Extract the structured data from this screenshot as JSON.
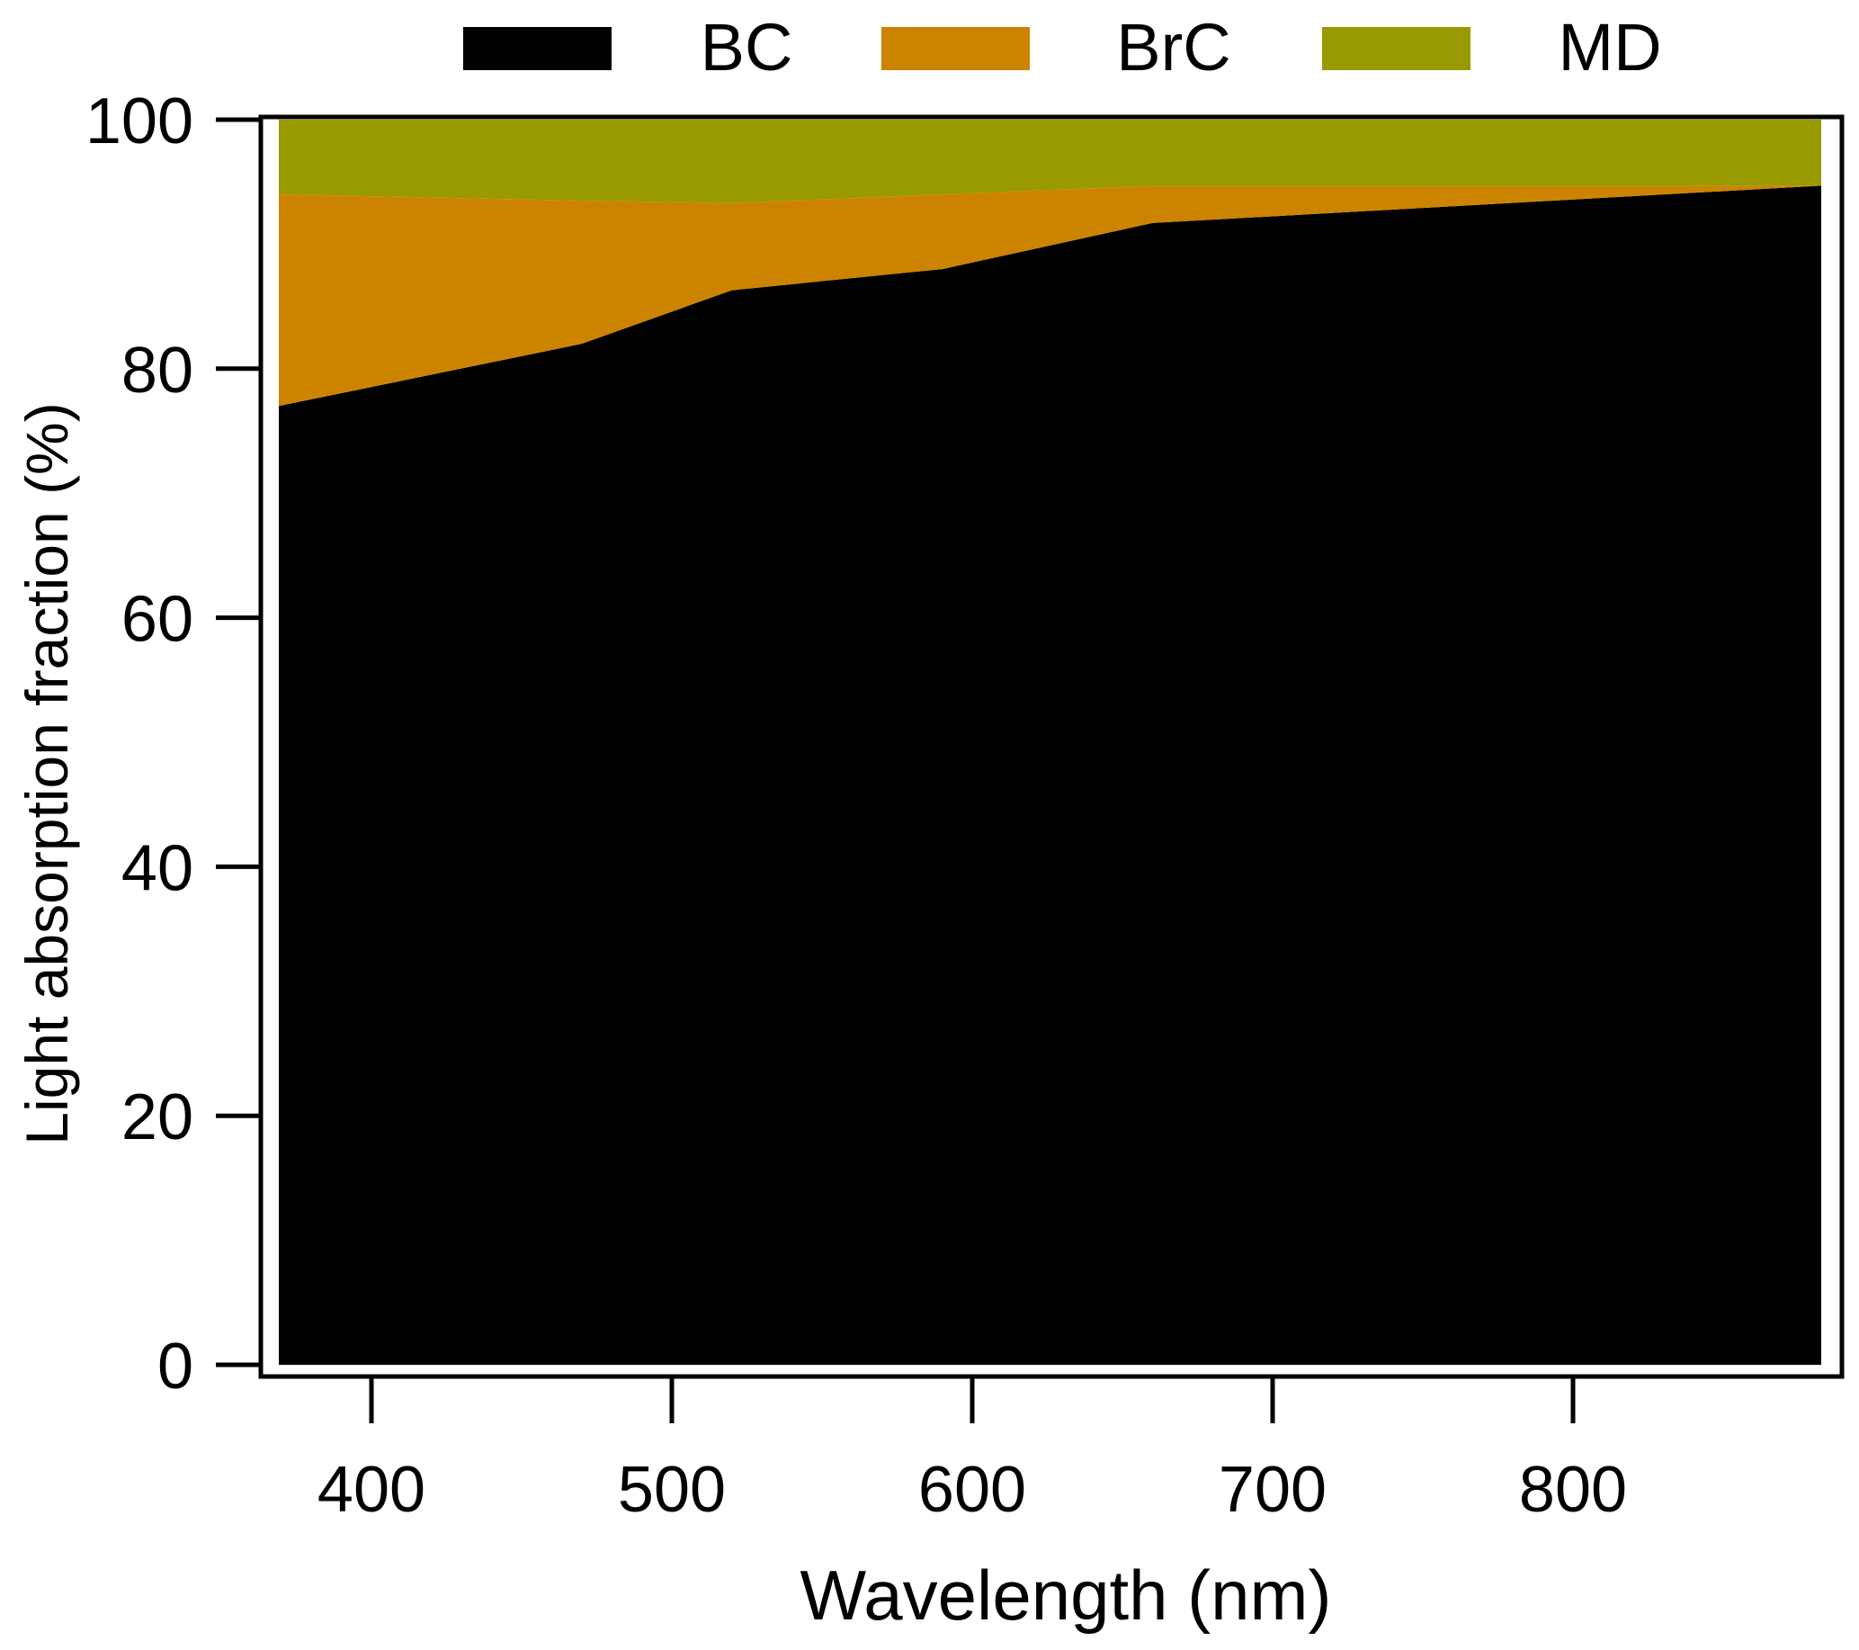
{
  "chart_data": {
    "type": "area",
    "stacked": true,
    "title": "",
    "xlabel": "Wavelength (nm)",
    "ylabel": "Light absorption fraction (%)",
    "xlim": [
      370,
      880
    ],
    "ylim": [
      0,
      100
    ],
    "xticks": [
      400,
      500,
      600,
      700,
      800
    ],
    "yticks": [
      0,
      20,
      40,
      60,
      80,
      100
    ],
    "grid": false,
    "legend_position": "top",
    "x": [
      370,
      470,
      520,
      590,
      660,
      880
    ],
    "series": [
      {
        "name": "BC",
        "color": "#000000",
        "values": [
          77.0,
          82.0,
          86.3,
          88.0,
          91.7,
          94.7
        ]
      },
      {
        "name": "BrC",
        "color": "#CC8400",
        "values": [
          17.0,
          11.5,
          7.0,
          6.0,
          3.0,
          0.0
        ]
      },
      {
        "name": "MD",
        "color": "#999900",
        "values": [
          6.0,
          6.5,
          6.7,
          6.0,
          5.3,
          5.3
        ]
      }
    ]
  }
}
